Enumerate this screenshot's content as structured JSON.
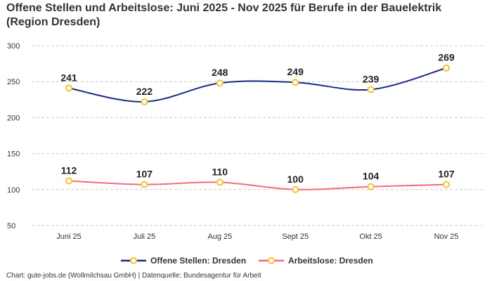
{
  "chart_data": {
    "type": "line",
    "title": "Offene Stellen und Arbeitslose: Juni 2025 - Nov 2025 für Berufe in der Bauelektrik (Region Dresden)",
    "categories": [
      "Juni 25",
      "Juli 25",
      "Aug 25",
      "Sept 25",
      "Okt 25",
      "Nov 25"
    ],
    "ylim": [
      50,
      300
    ],
    "yticks": [
      50,
      100,
      150,
      200,
      250,
      300
    ],
    "grid": true,
    "legend_position": "bottom",
    "series": [
      {
        "name": "Offene Stellen: Dresden",
        "values": [
          241,
          222,
          248,
          249,
          239,
          269
        ],
        "color": "#1c2a86"
      },
      {
        "name": "Arbeitslose: Dresden",
        "values": [
          112,
          107,
          110,
          100,
          104,
          107
        ],
        "color": "#f36a7e"
      }
    ],
    "marker_color": "#f7c22b"
  },
  "footer": "Chart: gute-jobs.de (Wollmilchsau GmbH) | Datenquelle: Bundesagentur für Arbeit"
}
